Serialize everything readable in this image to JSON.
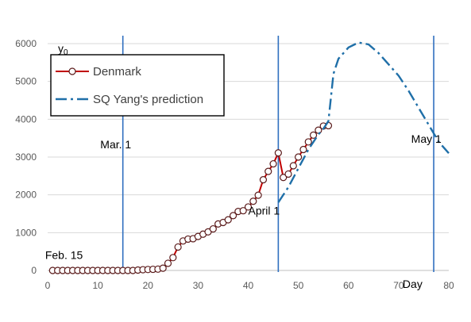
{
  "chart_data": {
    "type": "line",
    "y_axis_label": "y",
    "y_axis_label_subscript": "0",
    "x_axis_label": "Day",
    "xlim": [
      0,
      80
    ],
    "ylim": [
      0,
      6000
    ],
    "x_ticks": [
      0,
      10,
      20,
      30,
      40,
      50,
      60,
      70,
      80
    ],
    "y_ticks": [
      0,
      1000,
      2000,
      3000,
      4000,
      5000,
      6000
    ],
    "grid": "horizontal",
    "legend_position": "top-left",
    "vertical_markers": [
      {
        "x": 15,
        "label": "Mar. 1",
        "label_x": 10.5,
        "label_y": 3230
      },
      {
        "x": 46,
        "label": "April 1",
        "label_x": 40,
        "label_y": 1480
      },
      {
        "x": 77,
        "label": "May 1",
        "label_x": 72.5,
        "label_y": 3380
      }
    ],
    "annotations": [
      {
        "text": "Feb. 15",
        "x": -0.5,
        "y": 300
      }
    ],
    "series": [
      {
        "name": "Denmark",
        "color": "#c00000",
        "style": "solid-with-circle-markers",
        "x": [
          1,
          2,
          3,
          4,
          5,
          6,
          7,
          8,
          9,
          10,
          11,
          12,
          13,
          14,
          15,
          16,
          17,
          18,
          19,
          20,
          21,
          22,
          23,
          24,
          25,
          26,
          27,
          28,
          29,
          30,
          31,
          32,
          33,
          34,
          35,
          36,
          37,
          38,
          39,
          40,
          41,
          42,
          43,
          44,
          45,
          46,
          47,
          48,
          49,
          50,
          51,
          52,
          53,
          54,
          55,
          56
        ],
        "y": [
          0,
          0,
          0,
          0,
          0,
          0,
          0,
          0,
          0,
          0,
          0,
          0,
          0,
          0,
          0,
          0,
          0,
          10,
          20,
          25,
          30,
          35,
          60,
          190,
          340,
          620,
          780,
          830,
          840,
          900,
          960,
          1020,
          1100,
          1230,
          1270,
          1340,
          1450,
          1560,
          1580,
          1680,
          1830,
          1990,
          2400,
          2620,
          2820,
          3110,
          2460,
          2550,
          2770,
          3000,
          3200,
          3400,
          3580,
          3710,
          3820,
          3830
        ]
      },
      {
        "name": "SQ Yang's prediction",
        "color": "#1f6fa8",
        "style": "dash-dot",
        "x": [
          46,
          48,
          50,
          52,
          54,
          55,
          56,
          57,
          58,
          60,
          62,
          64,
          66,
          68,
          70,
          72,
          74,
          76,
          78,
          80
        ],
        "y": [
          1800,
          2200,
          2700,
          3200,
          3600,
          3750,
          3950,
          5200,
          5600,
          5900,
          6030,
          5980,
          5750,
          5450,
          5150,
          4750,
          4300,
          3850,
          3400,
          3100
        ]
      }
    ]
  }
}
